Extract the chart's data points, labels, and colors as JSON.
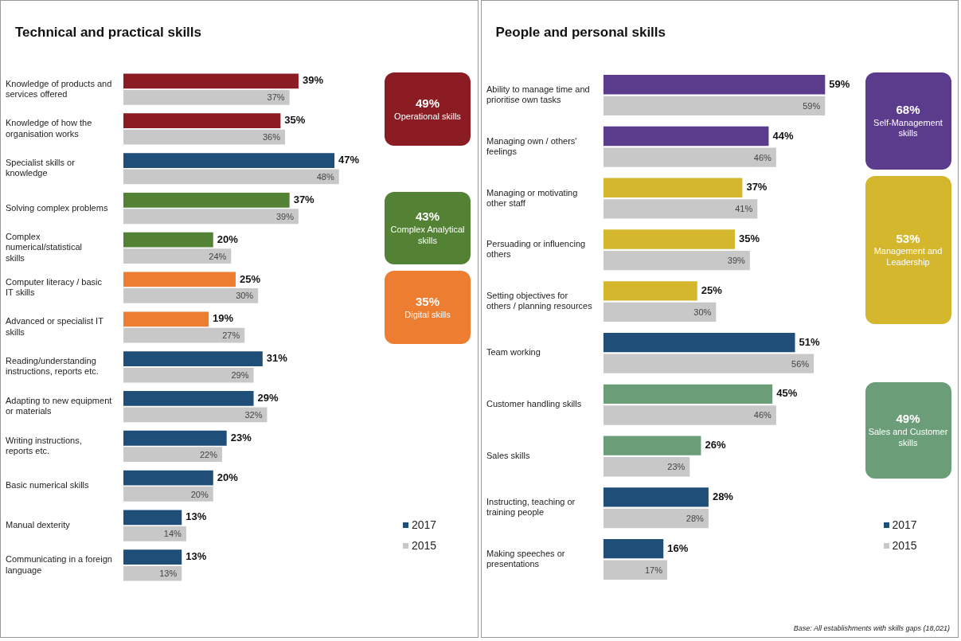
{
  "chart_data": [
    {
      "type": "bar",
      "orientation": "horizontal",
      "title": "Technical and practical skills",
      "legend": "right",
      "categories": [
        "Knowledge of products and services offered",
        "Knowledge of how the organisation works",
        "Specialist skills or knowledge",
        "Solving complex problems",
        "Complex numerical/statistical skills",
        "Computer literacy / basic IT skills",
        "Advanced or specialist IT skills",
        "Reading/understanding instructions, reports etc.",
        "Adapting to new equipment or materials",
        "Writing instructions, reports etc.",
        "Basic numerical skills",
        "Manual dexterity",
        "Communicating in a foreign language"
      ],
      "series": [
        {
          "name": "2017",
          "color": "#1f4e79",
          "colors": [
            "#8b1c24",
            "#8b1c24",
            "#1f4e79",
            "#548235",
            "#548235",
            "#ed7d31",
            "#ed7d31",
            "#1f4e79",
            "#1f4e79",
            "#1f4e79",
            "#1f4e79",
            "#1f4e79",
            "#1f4e79"
          ],
          "values": [
            39,
            35,
            47,
            37,
            20,
            25,
            19,
            31,
            29,
            23,
            20,
            13,
            13
          ],
          "value_labels": [
            "39%",
            "35%",
            "47%",
            "37%",
            "20%",
            "25%",
            "19%",
            "31%",
            "29%",
            "23%",
            "20%",
            "13%",
            "13%"
          ]
        },
        {
          "name": "2015",
          "color": "#c8c8c8",
          "values": [
            37,
            36,
            48,
            39,
            24,
            30,
            27,
            29,
            32,
            22,
            20,
            14,
            13
          ],
          "value_labels": [
            "37%",
            "36%",
            "48%",
            "39%",
            "24%",
            "30%",
            "27%",
            "29%",
            "32%",
            "22%",
            "20%",
            "14%",
            "13%"
          ]
        }
      ],
      "annotations": [
        "49%\nOperational skills",
        "43%\nComplex Analytical skills",
        "35%\nDigital skills"
      ]
    },
    {
      "type": "bar",
      "orientation": "horizontal",
      "title": "People and personal skills",
      "legend": "right",
      "categories": [
        "Ability to manage time and prioritise own tasks",
        "Managing own / others' feelings",
        "Managing or motivating other staff",
        "Persuading or influencing others",
        "Setting objectives for others / planning resources",
        "Team working",
        "Customer handling skills",
        "Sales skills",
        "Instructing, teaching or training people",
        "Making speeches or presentations"
      ],
      "series": [
        {
          "name": "2017",
          "color": "#1f4e79",
          "colors": [
            "#5b3b8c",
            "#5b3b8c",
            "#d4b72c",
            "#d4b72c",
            "#d4b72c",
            "#1f4e79",
            "#6b9e78",
            "#6b9e78",
            "#1f4e79",
            "#1f4e79"
          ],
          "values": [
            59,
            44,
            37,
            35,
            25,
            51,
            45,
            26,
            28,
            16
          ],
          "value_labels": [
            "59%",
            "44%",
            "37%",
            "35%",
            "25%",
            "51%",
            "45%",
            "26%",
            "28%",
            "16%"
          ]
        },
        {
          "name": "2015",
          "color": "#c8c8c8",
          "values": [
            59,
            46,
            41,
            39,
            30,
            56,
            46,
            23,
            28,
            17
          ],
          "value_labels": [
            "59%",
            "46%",
            "41%",
            "39%",
            "30%",
            "56%",
            "46%",
            "23%",
            "28%",
            "17%"
          ]
        }
      ],
      "annotations": [
        "68%\nSelf-Management skills",
        "53%\nManagement and Leadership",
        "49%\nSales and Customer skills",
        "Base: All establishments with skills gaps (18,021)"
      ]
    }
  ]
}
